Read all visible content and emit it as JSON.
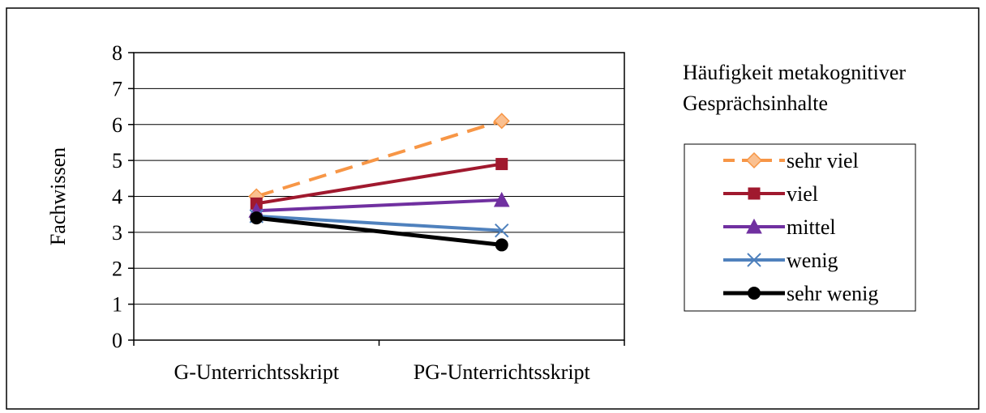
{
  "chart_data": {
    "type": "line",
    "categories": [
      "G-Unterrichtsskript",
      "PG-Unterrichtsskript"
    ],
    "ylabel": "Fachwissen",
    "ylim": [
      0,
      8
    ],
    "yticks": [
      "0",
      "1",
      "2",
      "3",
      "4",
      "5",
      "6",
      "7",
      "8"
    ],
    "grid": true,
    "legend_title": "Häufigkeit metakognitiver Gesprächsinhalte",
    "legend_title_lines": [
      "Häufigkeit metakognitiver",
      "Gesprächsinhalte"
    ],
    "legend_position": "right",
    "series": [
      {
        "name": "sehr viel",
        "values": [
          4.0,
          6.1
        ],
        "color": "#F79646",
        "dash": true,
        "marker": "diamond"
      },
      {
        "name": "viel",
        "values": [
          3.8,
          4.9
        ],
        "color": "#A0192E",
        "dash": false,
        "marker": "square"
      },
      {
        "name": "mittel",
        "values": [
          3.6,
          3.9
        ],
        "color": "#7030A0",
        "dash": false,
        "marker": "triangle"
      },
      {
        "name": "wenig",
        "values": [
          3.45,
          3.05
        ],
        "color": "#4F81BD",
        "dash": false,
        "marker": "x"
      },
      {
        "name": "sehr wenig",
        "values": [
          3.4,
          2.65
        ],
        "color": "#000000",
        "dash": false,
        "marker": "circle"
      }
    ]
  }
}
